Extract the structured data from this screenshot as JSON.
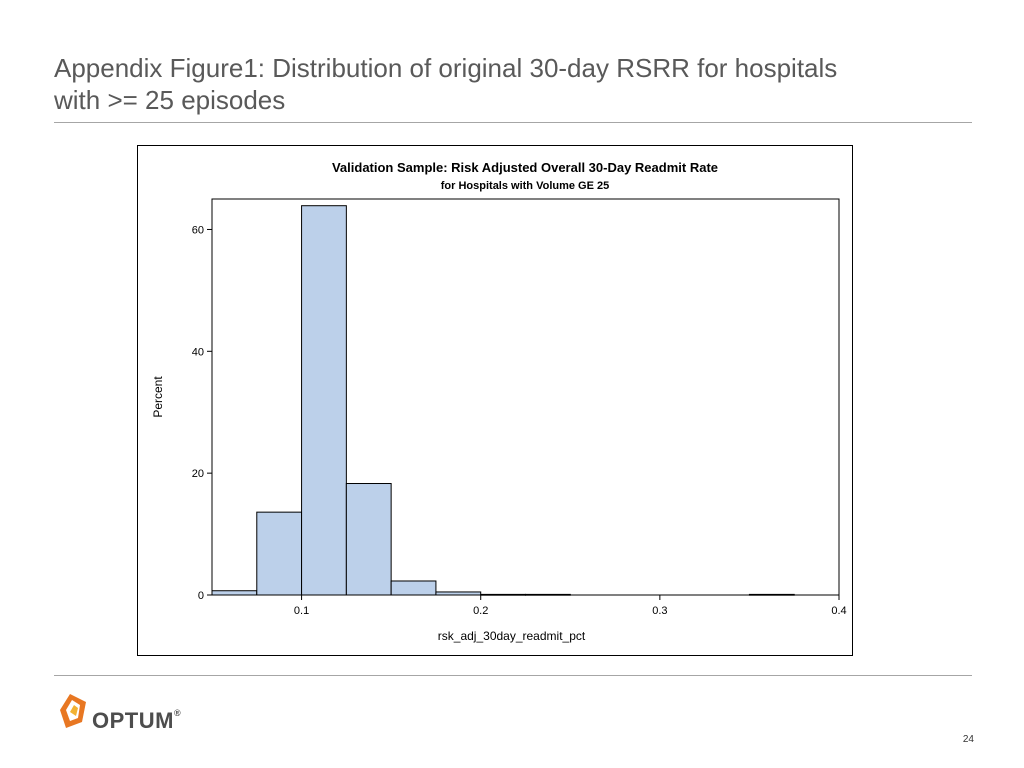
{
  "slide": {
    "title_line1": "Appendix Figure1: Distribution of original 30-day RSRR for hospitals",
    "title_line2": "with >= 25 episodes",
    "page_number": "24"
  },
  "logo": {
    "name": "OPTUM",
    "registered": "®"
  },
  "colors": {
    "bar_fill": "#bcd0ea",
    "bar_stroke": "#000000",
    "title_text": "#595959"
  },
  "chart_data": {
    "type": "bar",
    "title": "Validation Sample: Risk Adjusted Overall 30-Day Readmit Rate",
    "subtitle": "for Hospitals with Volume GE 25",
    "xlabel": "rsk_adj_30day_readmit_pct",
    "ylabel": "Percent",
    "xlim": [
      0.05,
      0.4
    ],
    "ylim": [
      0,
      65
    ],
    "bin_width": 0.025,
    "bins": [
      {
        "start": 0.05,
        "value": 0.7
      },
      {
        "start": 0.075,
        "value": 13.6
      },
      {
        "start": 0.1,
        "value": 63.9
      },
      {
        "start": 0.125,
        "value": 18.3
      },
      {
        "start": 0.15,
        "value": 2.3
      },
      {
        "start": 0.175,
        "value": 0.5
      },
      {
        "start": 0.2,
        "value": 0.1
      },
      {
        "start": 0.225,
        "value": 0.1
      },
      {
        "start": 0.35,
        "value": 0.1
      }
    ],
    "x_ticks": [
      {
        "value": 0.1,
        "label": "0.1"
      },
      {
        "value": 0.2,
        "label": "0.2"
      },
      {
        "value": 0.3,
        "label": "0.3"
      },
      {
        "value": 0.4,
        "label": "0.4"
      }
    ],
    "y_ticks": [
      {
        "value": 0,
        "label": "0"
      },
      {
        "value": 20,
        "label": "20"
      },
      {
        "value": 40,
        "label": "40"
      },
      {
        "value": 60,
        "label": "60"
      }
    ]
  }
}
